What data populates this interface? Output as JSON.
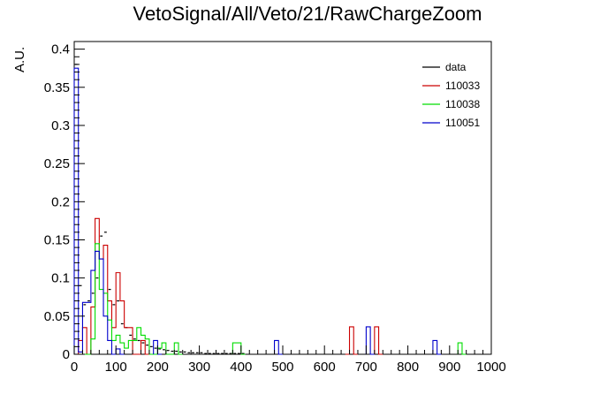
{
  "chart_data": {
    "type": "histogram",
    "title": "VetoSignal/All/Veto/21/RawChargeZoom",
    "xlabel": "",
    "ylabel": "A.U.",
    "xlim": [
      0,
      1000
    ],
    "ylim": [
      0,
      0.41
    ],
    "bin_width": 10,
    "grid": false,
    "legend_position": "top-right",
    "x_ticks": [
      "0",
      "100",
      "200",
      "300",
      "400",
      "500",
      "600",
      "700",
      "800",
      "900",
      "1000"
    ],
    "y_ticks": [
      "0",
      "0.05",
      "0.1",
      "0.15",
      "0.2",
      "0.25",
      "0.3",
      "0.35",
      "0.4"
    ],
    "y_tick_values": [
      0,
      0.05,
      0.1,
      0.15,
      0.2,
      0.25,
      0.3,
      0.35,
      0.4
    ],
    "series": [
      {
        "name": "data",
        "color": "#000000",
        "style": "markers",
        "bins": [
          [
            0,
            0.38
          ],
          [
            10,
            0.09
          ],
          [
            20,
            0.065
          ],
          [
            30,
            0.07
          ],
          [
            40,
            0.08
          ],
          [
            50,
            0.1
          ],
          [
            60,
            0.155
          ],
          [
            70,
            0.16
          ],
          [
            80,
            0.085
          ],
          [
            90,
            0.065
          ],
          [
            100,
            0.07
          ],
          [
            110,
            0.04
          ],
          [
            120,
            0.035
          ],
          [
            130,
            0.025
          ],
          [
            140,
            0.02
          ],
          [
            150,
            0.018
          ],
          [
            160,
            0.015
          ],
          [
            170,
            0.012
          ],
          [
            180,
            0.01
          ],
          [
            190,
            0.008
          ],
          [
            200,
            0.007
          ],
          [
            210,
            0.006
          ],
          [
            220,
            0.005
          ],
          [
            230,
            0.004
          ],
          [
            240,
            0.004
          ],
          [
            250,
            0.003
          ],
          [
            260,
            0.003
          ],
          [
            270,
            0.002
          ],
          [
            280,
            0.002
          ],
          [
            290,
            0.002
          ],
          [
            300,
            0.002
          ],
          [
            310,
            0.001
          ],
          [
            320,
            0.001
          ],
          [
            330,
            0.001
          ],
          [
            340,
            0.001
          ],
          [
            350,
            0.001
          ],
          [
            360,
            0.001
          ],
          [
            370,
            0.001
          ],
          [
            380,
            0.001
          ],
          [
            390,
            0.001
          ],
          [
            400,
            0.001
          ]
        ]
      },
      {
        "name": "110033",
        "color": "#cc0000",
        "style": "step",
        "bins": [
          [
            0,
            0
          ],
          [
            10,
            0.018
          ],
          [
            20,
            0.035
          ],
          [
            30,
            0
          ],
          [
            40,
            0.062
          ],
          [
            50,
            0.178
          ],
          [
            60,
            0.125
          ],
          [
            70,
            0.143
          ],
          [
            80,
            0.07
          ],
          [
            90,
            0.035
          ],
          [
            100,
            0.107
          ],
          [
            110,
            0.07
          ],
          [
            120,
            0.035
          ],
          [
            130,
            0.035
          ],
          [
            140,
            0
          ],
          [
            150,
            0
          ],
          [
            160,
            0.018
          ],
          [
            170,
            0
          ],
          [
            650,
            0
          ],
          [
            660,
            0.036
          ],
          [
            670,
            0
          ],
          [
            710,
            0
          ],
          [
            720,
            0.036
          ],
          [
            730,
            0
          ]
        ]
      },
      {
        "name": "110038",
        "color": "#00dd00",
        "style": "step",
        "bins": [
          [
            0,
            0
          ],
          [
            10,
            0
          ],
          [
            20,
            0
          ],
          [
            30,
            0
          ],
          [
            40,
            0.02
          ],
          [
            50,
            0.145
          ],
          [
            60,
            0.085
          ],
          [
            70,
            0.08
          ],
          [
            80,
            0.045
          ],
          [
            90,
            0.018
          ],
          [
            100,
            0.025
          ],
          [
            110,
            0.015
          ],
          [
            120,
            0.008
          ],
          [
            130,
            0.018
          ],
          [
            140,
            0.018
          ],
          [
            150,
            0.035
          ],
          [
            160,
            0.025
          ],
          [
            170,
            0.02
          ],
          [
            180,
            0
          ],
          [
            190,
            0
          ],
          [
            200,
            0.008
          ],
          [
            210,
            0.015
          ],
          [
            220,
            0
          ],
          [
            230,
            0
          ],
          [
            240,
            0.015
          ],
          [
            250,
            0
          ],
          [
            380,
            0.015
          ],
          [
            390,
            0.015
          ],
          [
            400,
            0
          ],
          [
            920,
            0.015
          ],
          [
            930,
            0
          ]
        ]
      },
      {
        "name": "110051",
        "color": "#0000cc",
        "style": "step",
        "bins": [
          [
            0,
            0.375
          ],
          [
            10,
            0.003
          ],
          [
            20,
            0.068
          ],
          [
            30,
            0.068
          ],
          [
            40,
            0.11
          ],
          [
            50,
            0.135
          ],
          [
            60,
            0.125
          ],
          [
            70,
            0.05
          ],
          [
            80,
            0.018
          ],
          [
            90,
            0
          ],
          [
            100,
            0.007
          ],
          [
            110,
            0
          ],
          [
            190,
            0.018
          ],
          [
            200,
            0
          ],
          [
            480,
            0.018
          ],
          [
            490,
            0
          ],
          [
            700,
            0.036
          ],
          [
            710,
            0
          ],
          [
            860,
            0.018
          ],
          [
            870,
            0
          ]
        ]
      }
    ]
  }
}
